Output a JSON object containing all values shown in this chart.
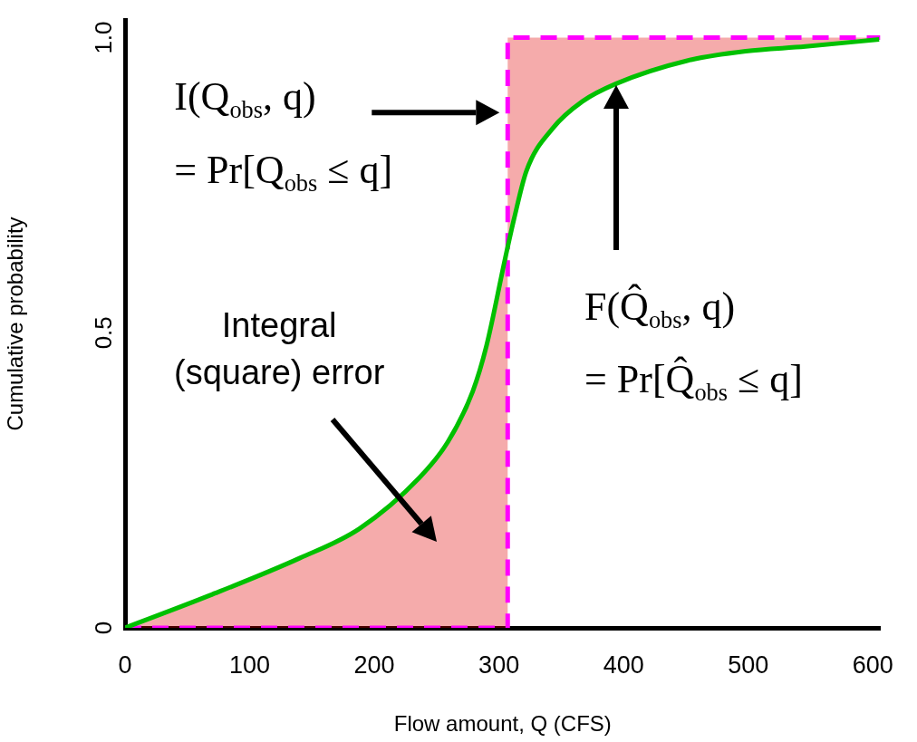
{
  "chart_data": {
    "type": "line",
    "xlabel": "Flow amount, Q (CFS)",
    "ylabel": "Cumulative probability",
    "xlim": [
      0,
      606
    ],
    "ylim": [
      0,
      1.03
    ],
    "xticks": [
      0,
      100,
      200,
      300,
      400,
      500,
      600
    ],
    "yticks": [
      0,
      0.5,
      {
        "value": 1,
        "label": "1.0"
      }
    ],
    "grid": false,
    "series": [
      {
        "color": "#00c000",
        "line_style": "solid",
        "x": [
          0,
          68,
          140,
          188,
          236,
          259,
          279,
          290,
          305,
          312,
          322,
          343,
          367,
          394,
          451,
          498,
          546,
          605
        ],
        "values": [
          0,
          0.055,
          0.118,
          0.168,
          0.254,
          0.315,
          0.401,
          0.478,
          0.626,
          0.692,
          0.774,
          0.846,
          0.892,
          0.922,
          0.961,
          0.977,
          0.985,
          0.997
        ]
      },
      {
        "color": "#ff00ff",
        "line_style": "dashed",
        "x": [
          0,
          307,
          307,
          606
        ],
        "values": [
          0,
          0,
          1,
          1
        ]
      }
    ],
    "annotations": [
      {
        "text": "I(Q$_{obs}$, q)\n= Pr[Q$_{obs}$ ≤ q]",
        "x": 307,
        "y": 0.873
      },
      "F(Q̂$_{obs}$, q)\n= Pr[Q̂$_{obs}$ ≤ q]",
      "Integral\n(square) error"
    ]
  }
}
